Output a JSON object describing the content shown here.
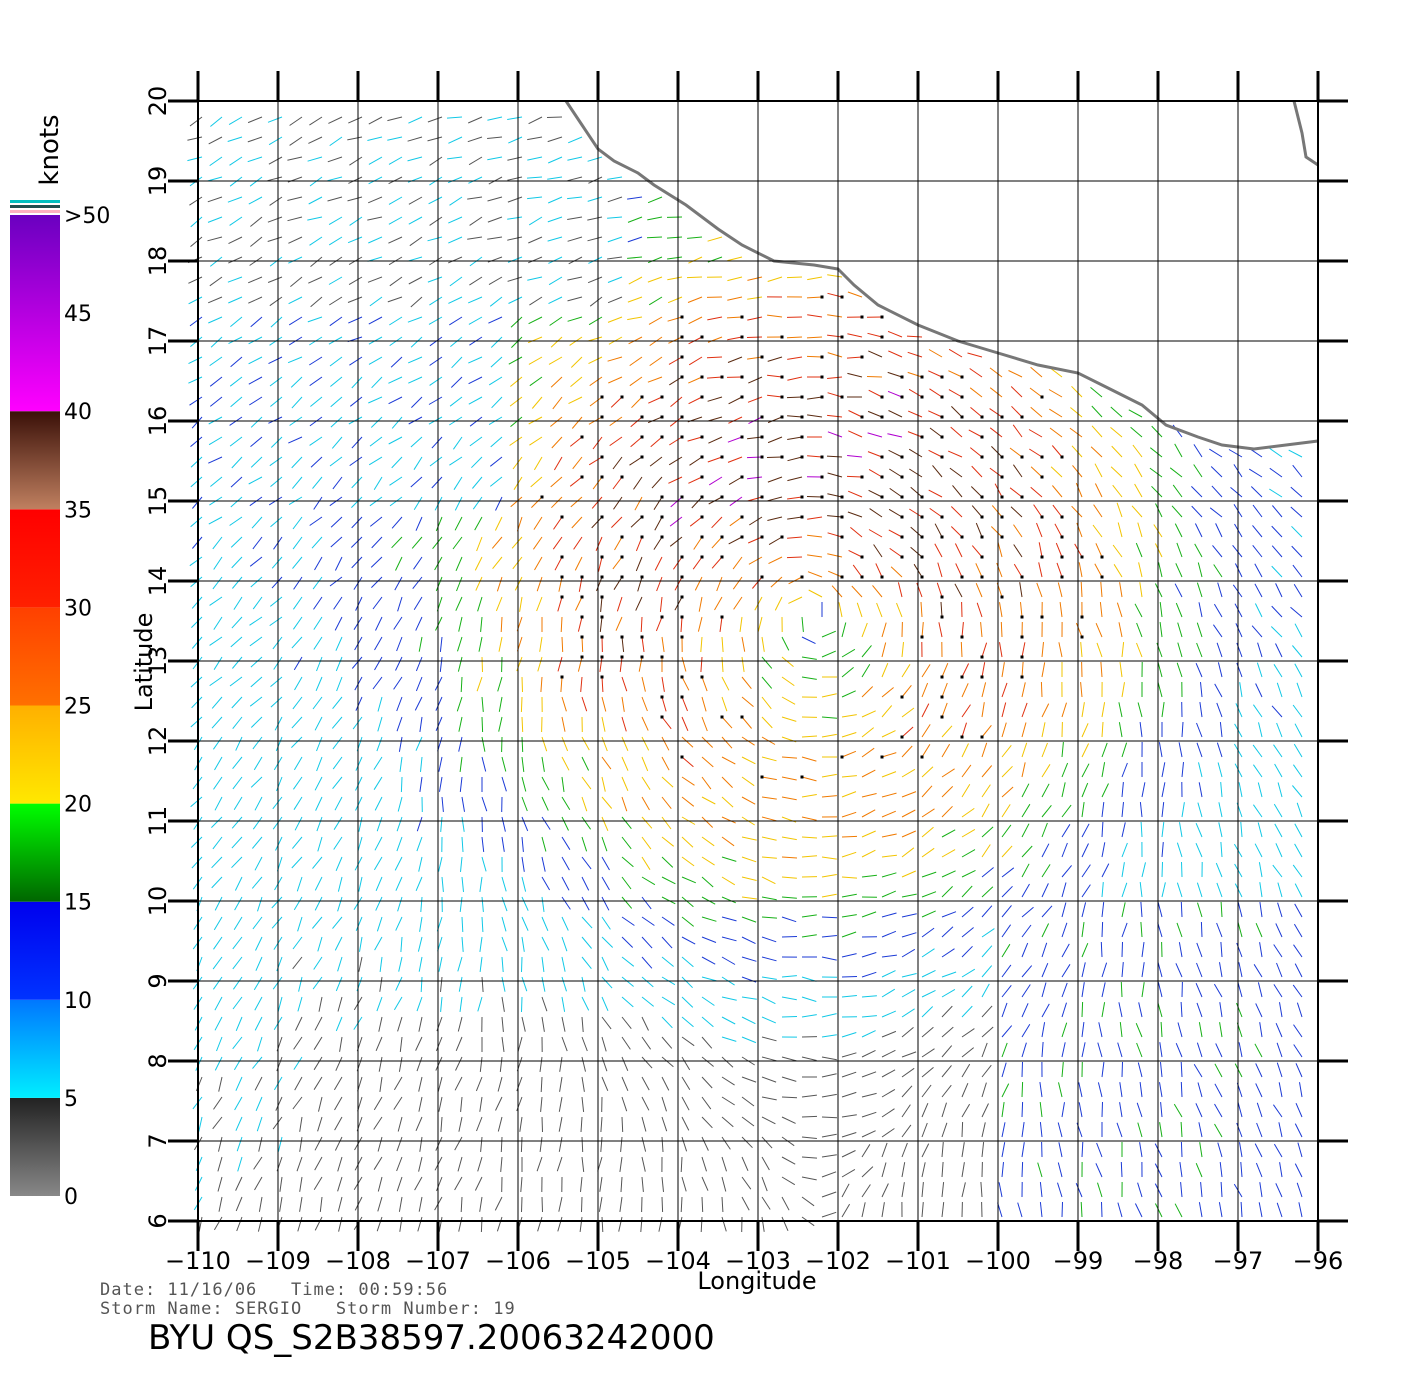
{
  "chart_data": {
    "type": "scatter",
    "subtype": "wind-vector-field",
    "xlabel": "Longitude",
    "ylabel": "Latitude",
    "xlim": [
      -110,
      -96
    ],
    "ylim": [
      6,
      20
    ],
    "x_ticks": [
      -110,
      -109,
      -108,
      -107,
      -106,
      -105,
      -104,
      -103,
      -102,
      -101,
      -100,
      -99,
      -98,
      -97,
      -96
    ],
    "y_ticks": [
      6,
      7,
      8,
      9,
      10,
      11,
      12,
      13,
      14,
      15,
      16,
      17,
      18,
      19,
      20
    ],
    "x_tick_labels": [
      "−110",
      "−109",
      "−108",
      "−107",
      "−106",
      "−105",
      "−104",
      "−103",
      "−102",
      "−101",
      "−100",
      "−99",
      "−98",
      "−97",
      "−96"
    ],
    "y_tick_labels": [
      "6",
      "7",
      "8",
      "9",
      "10",
      "11",
      "12",
      "13",
      "14",
      "15",
      "16",
      "17",
      "18",
      "19",
      "20"
    ],
    "grid": true,
    "colorbar": {
      "title": "knots",
      "ticks": [
        "0",
        "5",
        "10",
        "15",
        "20",
        "25",
        "30",
        "35",
        "40",
        "45",
        ">50"
      ],
      "tick_values": [
        0,
        5,
        10,
        15,
        20,
        25,
        30,
        35,
        40,
        45,
        50
      ]
    },
    "speed_colors": [
      {
        "min": 0,
        "max": 5,
        "color": "#555555"
      },
      {
        "min": 5,
        "max": 10,
        "color": "#11c8e6"
      },
      {
        "min": 10,
        "max": 15,
        "color": "#1b3ad6"
      },
      {
        "min": 15,
        "max": 20,
        "color": "#16b016"
      },
      {
        "min": 20,
        "max": 25,
        "color": "#f2c400"
      },
      {
        "min": 25,
        "max": 30,
        "color": "#f07a00"
      },
      {
        "min": 30,
        "max": 35,
        "color": "#e03010"
      },
      {
        "min": 35,
        "max": 40,
        "color": "#5a2a10"
      },
      {
        "min": 40,
        "max": 50,
        "color": "#b000d0"
      }
    ],
    "storm_center": {
      "lon": -102.3,
      "lat": 13.6
    },
    "coastline": [
      [
        -105.4,
        20.0
      ],
      [
        -105.2,
        19.7
      ],
      [
        -105.0,
        19.4
      ],
      [
        -104.8,
        19.25
      ],
      [
        -104.5,
        19.1
      ],
      [
        -104.3,
        18.95
      ],
      [
        -103.9,
        18.7
      ],
      [
        -103.5,
        18.4
      ],
      [
        -103.2,
        18.2
      ],
      [
        -102.8,
        18.0
      ],
      [
        -102.3,
        17.95
      ],
      [
        -102.0,
        17.9
      ],
      [
        -101.8,
        17.7
      ],
      [
        -101.5,
        17.45
      ],
      [
        -101.0,
        17.2
      ],
      [
        -100.5,
        17.0
      ],
      [
        -100.0,
        16.85
      ],
      [
        -99.5,
        16.7
      ],
      [
        -99.0,
        16.6
      ],
      [
        -98.6,
        16.4
      ],
      [
        -98.2,
        16.2
      ],
      [
        -97.9,
        15.95
      ],
      [
        -97.5,
        15.8
      ],
      [
        -97.2,
        15.7
      ],
      [
        -96.8,
        15.65
      ],
      [
        -96.4,
        15.7
      ],
      [
        -96.0,
        15.75
      ]
    ],
    "coastline_gulf": [
      [
        -96.3,
        20.0
      ],
      [
        -96.2,
        19.6
      ],
      [
        -96.15,
        19.3
      ],
      [
        -96.0,
        19.2
      ]
    ]
  },
  "info": {
    "date_line": "Date: 11/16/06   Time: 00:59:56",
    "storm_line": "Storm Name: SERGIO   Storm Number: 19",
    "id_line": "BYU QS_S2B38597.20063242000"
  }
}
